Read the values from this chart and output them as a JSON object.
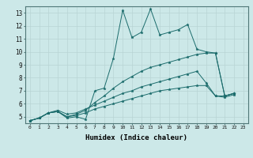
{
  "xlabel": "Humidex (Indice chaleur)",
  "bg_color": "#cce8e8",
  "grid_color": "#b8d4d4",
  "line_color": "#1a6b6b",
  "xlim": [
    -0.5,
    23.5
  ],
  "ylim": [
    4.5,
    13.5
  ],
  "xticks": [
    0,
    1,
    2,
    3,
    4,
    5,
    6,
    7,
    8,
    9,
    10,
    11,
    12,
    13,
    14,
    15,
    16,
    17,
    18,
    19,
    20,
    21,
    22,
    23
  ],
  "yticks": [
    5,
    6,
    7,
    8,
    9,
    10,
    11,
    12,
    13
  ],
  "series": [
    {
      "x": [
        0,
        1,
        2,
        3,
        4,
        5,
        6,
        7,
        8,
        9,
        10,
        11,
        12,
        13,
        14,
        15,
        16,
        17,
        18,
        19,
        20,
        21,
        22
      ],
      "y": [
        4.7,
        4.9,
        5.3,
        5.4,
        4.9,
        5.0,
        4.8,
        7.0,
        7.2,
        9.5,
        13.2,
        11.1,
        11.5,
        13.3,
        11.3,
        11.5,
        11.7,
        12.1,
        10.2,
        10.0,
        9.9,
        6.6,
        6.8
      ]
    },
    {
      "x": [
        0,
        1,
        2,
        3,
        4,
        5,
        6,
        7,
        8,
        9,
        10,
        11,
        12,
        13,
        14,
        15,
        16,
        17,
        18,
        19,
        20,
        21,
        22
      ],
      "y": [
        4.7,
        4.9,
        5.3,
        5.4,
        5.0,
        5.2,
        5.5,
        6.1,
        6.6,
        7.2,
        7.7,
        8.1,
        8.5,
        8.8,
        9.0,
        9.2,
        9.4,
        9.6,
        9.8,
        9.9,
        9.9,
        6.6,
        6.8
      ]
    },
    {
      "x": [
        0,
        1,
        2,
        3,
        4,
        5,
        6,
        7,
        8,
        9,
        10,
        11,
        12,
        13,
        14,
        15,
        16,
        17,
        18,
        19,
        20,
        21,
        22
      ],
      "y": [
        4.7,
        4.9,
        5.3,
        5.5,
        5.2,
        5.3,
        5.6,
        5.9,
        6.2,
        6.5,
        6.8,
        7.0,
        7.3,
        7.5,
        7.7,
        7.9,
        8.1,
        8.3,
        8.5,
        7.6,
        6.6,
        6.6,
        6.8
      ]
    },
    {
      "x": [
        0,
        1,
        2,
        3,
        4,
        5,
        6,
        7,
        8,
        9,
        10,
        11,
        12,
        13,
        14,
        15,
        16,
        17,
        18,
        19,
        20,
        21,
        22
      ],
      "y": [
        4.7,
        4.9,
        5.3,
        5.4,
        5.0,
        5.1,
        5.3,
        5.6,
        5.8,
        6.0,
        6.2,
        6.4,
        6.6,
        6.8,
        7.0,
        7.1,
        7.2,
        7.3,
        7.4,
        7.4,
        6.6,
        6.5,
        6.7
      ]
    }
  ]
}
